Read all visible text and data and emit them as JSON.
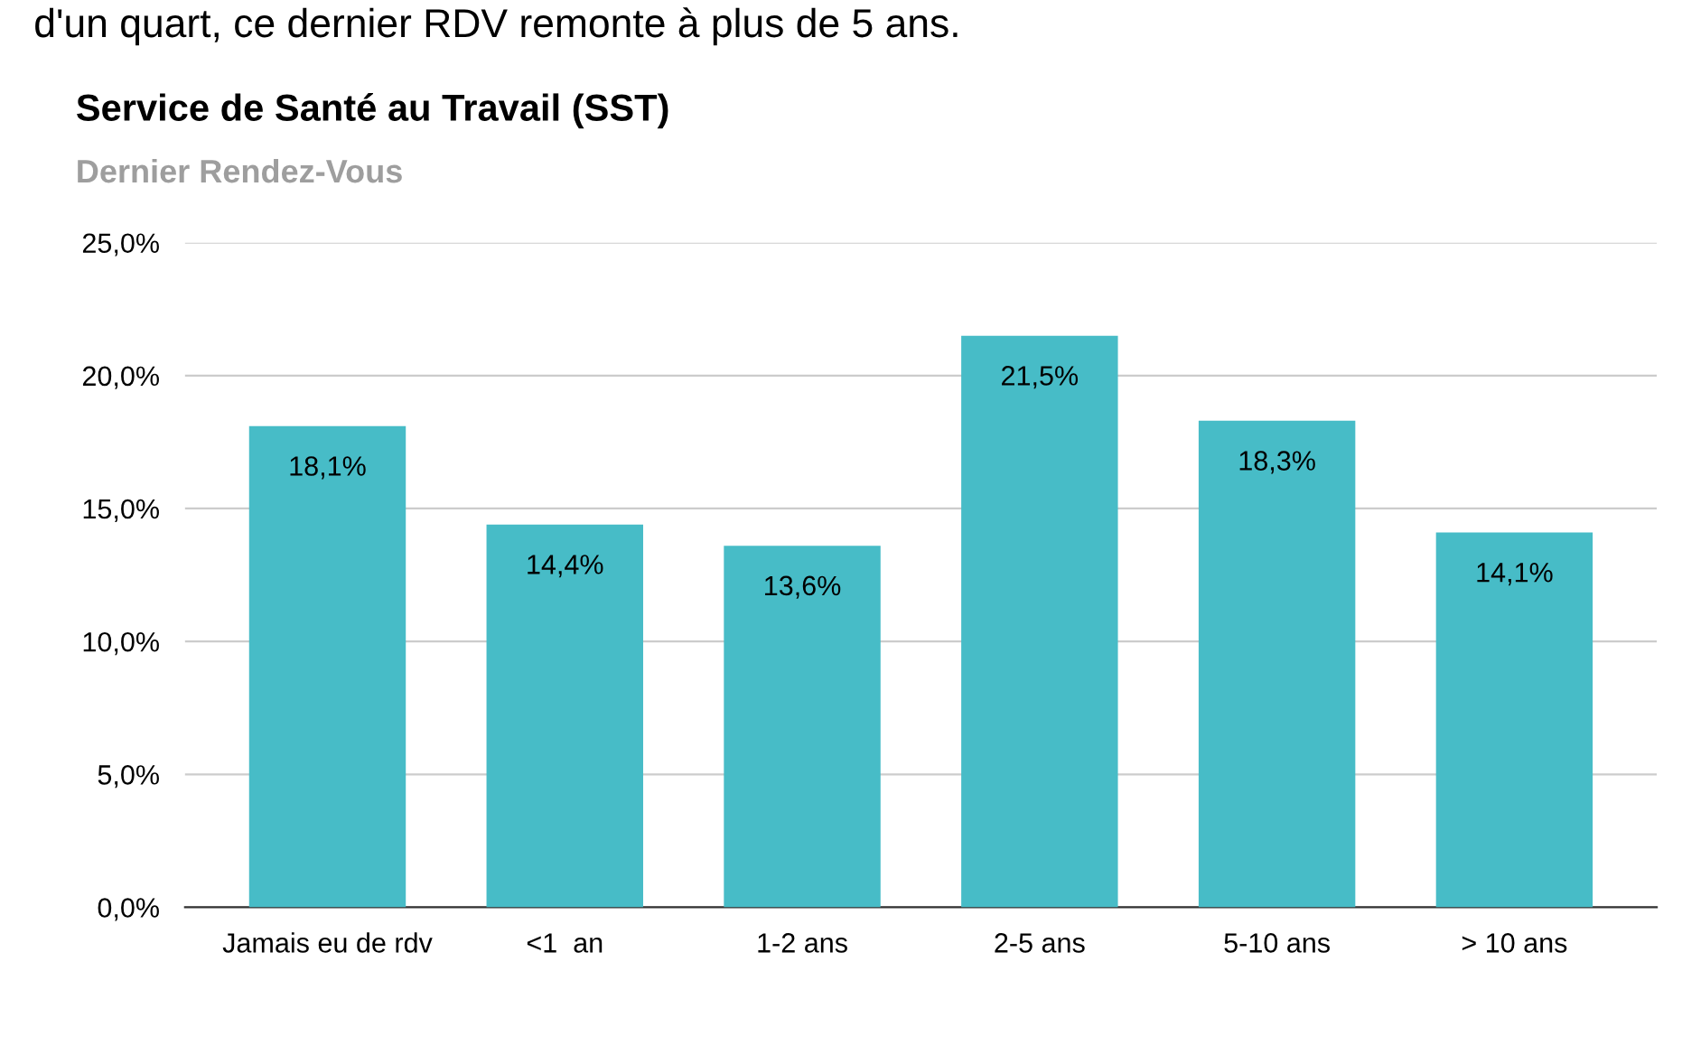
{
  "chart_data": {
    "type": "bar",
    "title": "Service de Santé au Travail (SST)",
    "subtitle": "Dernier Rendez-Vous",
    "annotations": [
      "d'un quart, ce dernier RDV remonte à plus de 5 ans."
    ],
    "categories": [
      "Jamais eu de rdv",
      "<1  an",
      "1-2 ans",
      "2-5 ans",
      "5-10 ans",
      "> 10 ans"
    ],
    "values": [
      18.1,
      14.4,
      13.6,
      21.5,
      18.3,
      14.1
    ],
    "value_labels": [
      "18,1%",
      "14,4%",
      "13,6%",
      "21,5%",
      "18,3%",
      "14,1%"
    ],
    "color": "#47bcc7",
    "ylim": [
      0,
      25
    ],
    "yticks": [
      {
        "value": 0,
        "label": "0,0%"
      },
      {
        "value": 5,
        "label": "5,0%"
      },
      {
        "value": 10,
        "label": "10,0%"
      },
      {
        "value": 15,
        "label": "15,0%"
      },
      {
        "value": 20,
        "label": "20,0%"
      },
      {
        "value": 25,
        "label": "25,0%"
      }
    ],
    "grid": "y",
    "legend": false
  }
}
